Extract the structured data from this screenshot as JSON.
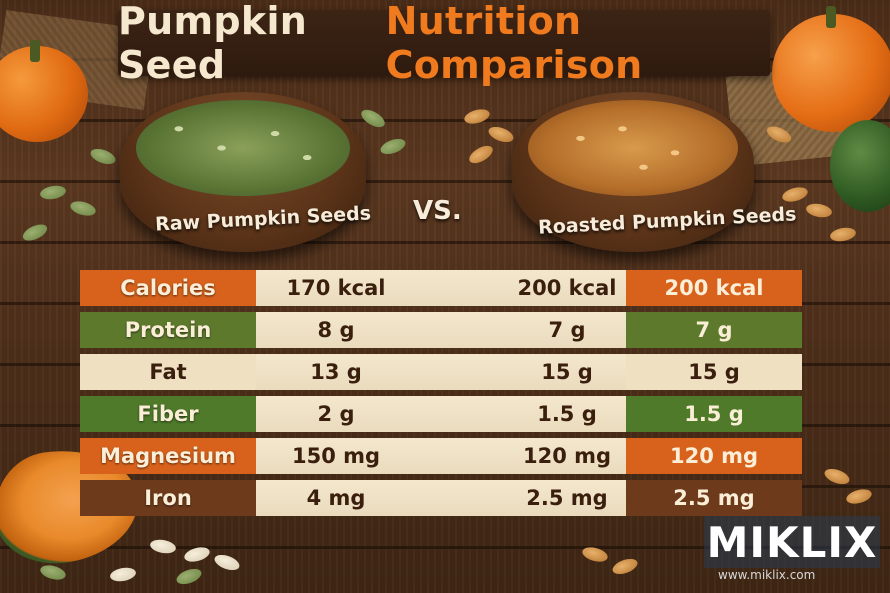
{
  "title": {
    "part1": "Pumpkin Seed",
    "part2": "Nutrition Comparison"
  },
  "bowls": {
    "left_label": "Raw Pumpkin Seeds",
    "right_label": "Roasted Pumpkin Seeds",
    "vs": "VS."
  },
  "table": {
    "rows": [
      {
        "label": "Calories",
        "raw": "170 kcal",
        "roasted": "200 kcal",
        "highlight": "200 kcal"
      },
      {
        "label": "Protein",
        "raw": "8 g",
        "roasted": "7 g",
        "highlight": "7 g"
      },
      {
        "label": "Fat",
        "raw": "13 g",
        "roasted": "15 g",
        "highlight": "15 g"
      },
      {
        "label": "Fiber",
        "raw": "2 g",
        "roasted": "1.5 g",
        "highlight": "1.5 g"
      },
      {
        "label": "Magnesium",
        "raw": "150 mg",
        "roasted": "120 mg",
        "highlight": "120 mg"
      },
      {
        "label": "Iron",
        "raw": "4 mg",
        "roasted": "2.5 mg",
        "highlight": "2.5 mg"
      }
    ]
  },
  "colors": {
    "orange": "#d8621c",
    "green": "#5d7a2c",
    "cream": "#efe0c2",
    "brown": "#6e3a1c"
  },
  "watermark": {
    "logo": "MIKLIX",
    "url": "www.miklix.com"
  }
}
